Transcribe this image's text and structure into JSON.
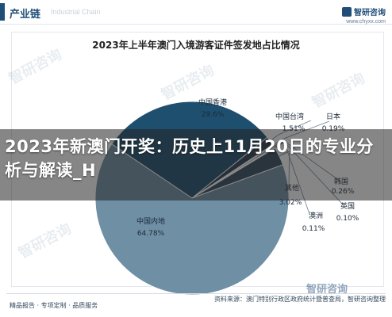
{
  "header": {
    "tag": "产业链",
    "watermark": "Industrial Chain",
    "brand_name": "智研咨询",
    "brand_url": "www.chyxx.com"
  },
  "chart_data": {
    "type": "pie",
    "title": "2023年上半年澳门入境游客证件签发地占比情况",
    "slices": [
      {
        "name": "中国内地",
        "value": 64.78,
        "label": "64.78%",
        "color": "#6f8fa5"
      },
      {
        "name": "中国香港",
        "value": 29.6,
        "label": "29.6%",
        "color": "#1f4f6e"
      },
      {
        "name": "中国台湾",
        "value": 1.51,
        "label": "1.51%",
        "color": "#2c3e50"
      },
      {
        "name": "日本",
        "value": 0.19,
        "label": "0.19%",
        "color": "#5d6d7e"
      },
      {
        "name": "其他",
        "value": 3.02,
        "label": "3.02%",
        "color": "#34495e"
      },
      {
        "name": "澳洲",
        "value": 0.11,
        "label": "0.11%",
        "color": "#85929e"
      },
      {
        "name": "英国",
        "value": 0.1,
        "label": "0.10%",
        "color": "#aab7b8"
      },
      {
        "name": "韩国",
        "value": 0.26,
        "label": "0.26%",
        "color": "#4a6274"
      }
    ]
  },
  "banner": {
    "text": "2023年新澳门开奖：历史上11月20日的专业分析与解读_H"
  },
  "footer": {
    "left": "精品报告 · 专项定制 · 品质服务",
    "right": "资料来源：澳门特别行政区政府统计暨普查局，智研咨询整理",
    "brand": "智研咨询"
  },
  "watermark_text": "智研咨询"
}
